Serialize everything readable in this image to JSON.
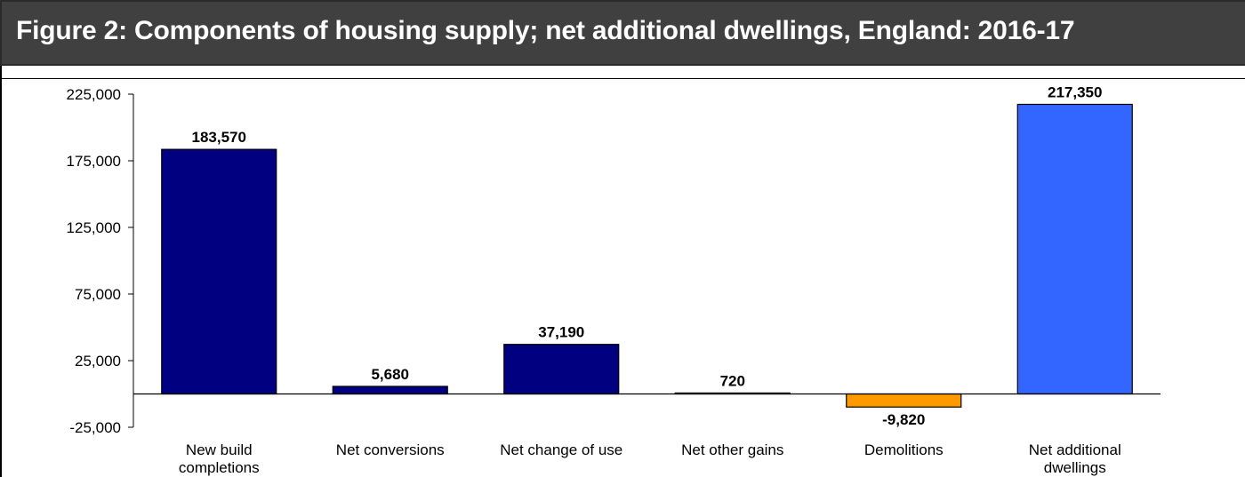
{
  "header": {
    "title": "Figure 2: Components of housing supply; net additional dwellings, England: 2016-17"
  },
  "colors": {
    "title_background": "#404040",
    "title_text": "#ffffff",
    "bar_components": "#000080",
    "bar_demolitions": "#ff9900",
    "bar_net_additional": "#3366ff"
  },
  "chart_data": {
    "type": "bar",
    "title": "Figure 2: Components of housing supply; net additional dwellings, England: 2016-17",
    "xlabel": "",
    "ylabel": "",
    "ylim": [
      -25000,
      225000
    ],
    "yticks": [
      -25000,
      25000,
      75000,
      125000,
      175000,
      225000
    ],
    "ytick_labels": [
      "-25,000",
      "25,000",
      "75,000",
      "125,000",
      "175,000",
      "225,000"
    ],
    "grid": false,
    "legend": "none",
    "categories": [
      [
        "New build",
        "completions"
      ],
      [
        "Net conversions"
      ],
      [
        "Net change of use"
      ],
      [
        "Net other gains"
      ],
      [
        "Demolitions"
      ],
      [
        "Net additional",
        "dwellings"
      ]
    ],
    "values": [
      183570,
      5680,
      37190,
      720,
      -9820,
      217350
    ],
    "data_labels": [
      "183,570",
      "5,680",
      "37,190",
      "720",
      "-9,820",
      "217,350"
    ],
    "bar_colors": [
      "#000080",
      "#000080",
      "#000080",
      "#000080",
      "#ff9900",
      "#3366ff"
    ]
  }
}
